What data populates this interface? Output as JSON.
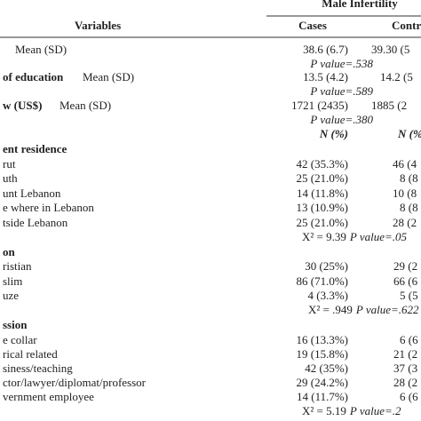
{
  "header": {
    "group": "Male Infertility",
    "variables": "Variables",
    "cases": "Cases",
    "controls": "Contr"
  },
  "rows": [
    {
      "sub": "Mean (SD)",
      "cases": "38.6 (6.7)",
      "controls": "39.30 (5"
    },
    {
      "p": "P value=.538"
    },
    {
      "label": "of education",
      "sub": "Mean (SD)",
      "cases": "13.5 (4.2)",
      "controls": "14.2 (5"
    },
    {
      "p": "P value=.589"
    },
    {
      "label": "w (US$)",
      "sub": "Mean (SD)",
      "cases": "1721 (2435)",
      "controls": "1885 (2"
    },
    {
      "p": "P value=.380"
    },
    {
      "cases": "N (%)",
      "controls": "N (%"
    },
    {
      "label": "ent residence"
    },
    {
      "label": "rut",
      "cases": "42 (35.3%)",
      "controls": "46 (4"
    },
    {
      "label": "uth",
      "cases": "25 (21.0%)",
      "controls": "8 (8"
    },
    {
      "label": "unt Lebanon",
      "cases": "14 (11.8%)",
      "controls": "10 (8"
    },
    {
      "label": "e where in Lebanon",
      "cases": "13 (10.9%)",
      "controls": "8 (8"
    },
    {
      "label": "tside Lebanon",
      "cases": "25 (21.0%)",
      "controls": "28 (2"
    },
    {
      "chi": "X² = 9.39",
      "p": "P value=.05"
    },
    {
      "label": "on"
    },
    {
      "label": "ristian",
      "cases": "30 (25%)",
      "controls": "29 (2"
    },
    {
      "label": "slim",
      "cases": "86 (71.0%)",
      "controls": "66 (6"
    },
    {
      "label": "uze",
      "cases": "4 (3.3%)",
      "controls": "5 (5"
    },
    {
      "chi": "X² = .949",
      "p": "P value=.622"
    },
    {
      "label": "ssion"
    },
    {
      "label": "e collar",
      "cases": "16 (13.3%)",
      "controls": "6 (6"
    },
    {
      "label": "rical related",
      "cases": "19 (15.8%)",
      "controls": "21 (2"
    },
    {
      "label": "siness/teaching",
      "cases": "42 (35%)",
      "controls": "37 (3"
    },
    {
      "label": "ctor/lawyer/diplomat/professor",
      "cases": "29 (24.2%)",
      "controls": "28 (2"
    },
    {
      "label": "vernment employee",
      "cases": "14 (11.7%)",
      "controls": "6 (6"
    },
    {
      "chi": "X² = 5.19",
      "p": "P value=.2"
    }
  ]
}
